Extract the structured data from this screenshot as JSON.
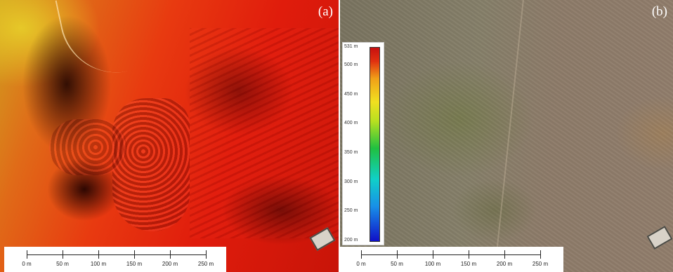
{
  "panels": {
    "a": {
      "label": "(a)"
    },
    "b": {
      "label": "(b)"
    }
  },
  "scale_bar": {
    "ticks": [
      "0 m",
      "50 m",
      "100 m",
      "150 m",
      "200 m",
      "250 m"
    ]
  },
  "legend": {
    "title_max": "531 m",
    "labels": [
      "531 m",
      "500 m",
      "450 m",
      "400 m",
      "350 m",
      "300 m",
      "250 m",
      "200 m"
    ],
    "values": [
      531,
      500,
      450,
      400,
      350,
      300,
      250,
      200
    ],
    "min": 200,
    "max": 531
  },
  "colors": {
    "elevation_high": "#c81010",
    "elevation_mid": "#20c040",
    "elevation_low": "#1010c8"
  }
}
